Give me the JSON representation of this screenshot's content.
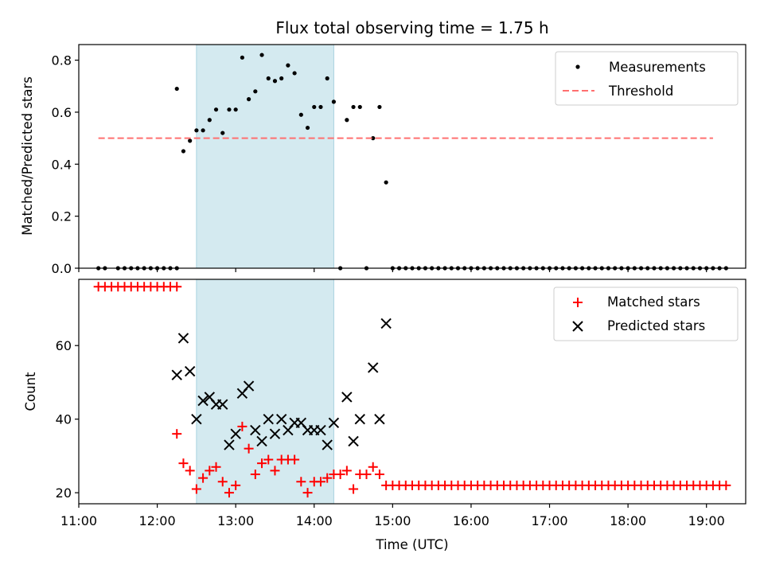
{
  "chart_data": [
    {
      "type": "scatter",
      "title": "Flux total observing time = 1.75 h",
      "xlabel": "",
      "ylabel": "Matched/Predicted stars",
      "xlim": [
        "11:00",
        "19:30"
      ],
      "ylim": [
        0,
        0.86
      ],
      "yticks": [
        0.0,
        0.2,
        0.4,
        0.6,
        0.8
      ],
      "ytick_labels": [
        "0.0",
        "0.2",
        "0.4",
        "0.6",
        "0.8"
      ],
      "highlight_span": {
        "from": "12:30",
        "to": "14:15",
        "color": "#d4eaf0"
      },
      "legend_position": "top-right",
      "series": [
        {
          "name": "Measurements",
          "marker": "dot",
          "color": "#000000",
          "points": [
            [
              "11:15",
              0
            ],
            [
              "11:20",
              0
            ],
            [
              "11:30",
              0
            ],
            [
              "11:35",
              0
            ],
            [
              "11:40",
              0
            ],
            [
              "11:45",
              0
            ],
            [
              "11:50",
              0
            ],
            [
              "11:55",
              0
            ],
            [
              "12:00",
              0
            ],
            [
              "12:05",
              0
            ],
            [
              "12:10",
              0
            ],
            [
              "12:15",
              0
            ],
            [
              "12:15",
              0.69
            ],
            [
              "12:20",
              0.45
            ],
            [
              "12:25",
              0.49
            ],
            [
              "12:30",
              0.53
            ],
            [
              "12:35",
              0.53
            ],
            [
              "12:40",
              0.57
            ],
            [
              "12:45",
              0.61
            ],
            [
              "12:50",
              0.52
            ],
            [
              "12:55",
              0.61
            ],
            [
              "13:00",
              0.61
            ],
            [
              "13:05",
              0.81
            ],
            [
              "13:10",
              0.65
            ],
            [
              "13:15",
              0.68
            ],
            [
              "13:20",
              0.82
            ],
            [
              "13:25",
              0.73
            ],
            [
              "13:30",
              0.72
            ],
            [
              "13:35",
              0.73
            ],
            [
              "13:40",
              0.78
            ],
            [
              "13:45",
              0.75
            ],
            [
              "13:50",
              0.59
            ],
            [
              "13:55",
              0.54
            ],
            [
              "14:00",
              0.62
            ],
            [
              "14:05",
              0.62
            ],
            [
              "14:10",
              0.73
            ],
            [
              "14:15",
              0.64
            ],
            [
              "14:20",
              0
            ],
            [
              "14:25",
              0.57
            ],
            [
              "14:30",
              0.62
            ],
            [
              "14:35",
              0.62
            ],
            [
              "14:40",
              0
            ],
            [
              "14:45",
              0.5
            ],
            [
              "14:50",
              0.62
            ],
            [
              "14:55",
              0.33
            ]
          ],
          "zero_run": {
            "from": "15:00",
            "to": "19:15",
            "step_minutes": 5,
            "value": 0
          }
        },
        {
          "name": "Threshold",
          "marker": "dashed-line",
          "color": "#ff7070",
          "points": [
            [
              "11:15",
              0.5
            ],
            [
              "19:05",
              0.5
            ]
          ]
        }
      ]
    },
    {
      "type": "scatter",
      "title": "",
      "xlabel": "Time (UTC)",
      "ylabel": "Count",
      "xlim": [
        "11:00",
        "19:30"
      ],
      "ylim": [
        17,
        78
      ],
      "xticks": [
        "11:00",
        "12:00",
        "13:00",
        "14:00",
        "15:00",
        "16:00",
        "17:00",
        "18:00",
        "19:00"
      ],
      "yticks": [
        20,
        40,
        60
      ],
      "ytick_labels": [
        "20",
        "40",
        "60"
      ],
      "highlight_span": {
        "from": "12:30",
        "to": "14:15",
        "color": "#d4eaf0"
      },
      "legend_position": "top-right",
      "series": [
        {
          "name": "Matched stars",
          "marker": "plus",
          "color": "#ff0000",
          "points": [
            [
              "11:15",
              76
            ],
            [
              "11:20",
              76
            ],
            [
              "11:25",
              76
            ],
            [
              "11:30",
              76
            ],
            [
              "11:35",
              76
            ],
            [
              "11:40",
              76
            ],
            [
              "11:45",
              76
            ],
            [
              "11:50",
              76
            ],
            [
              "11:55",
              76
            ],
            [
              "12:00",
              76
            ],
            [
              "12:05",
              76
            ],
            [
              "12:10",
              76
            ],
            [
              "12:15",
              76
            ],
            [
              "12:15",
              36
            ],
            [
              "12:20",
              28
            ],
            [
              "12:25",
              26
            ],
            [
              "12:30",
              21
            ],
            [
              "12:35",
              24
            ],
            [
              "12:40",
              26
            ],
            [
              "12:45",
              27
            ],
            [
              "12:50",
              23
            ],
            [
              "12:55",
              20
            ],
            [
              "13:00",
              22
            ],
            [
              "13:05",
              38
            ],
            [
              "13:10",
              32
            ],
            [
              "13:15",
              25
            ],
            [
              "13:20",
              28
            ],
            [
              "13:25",
              29
            ],
            [
              "13:30",
              26
            ],
            [
              "13:35",
              29
            ],
            [
              "13:40",
              29
            ],
            [
              "13:45",
              29
            ],
            [
              "13:50",
              23
            ],
            [
              "13:55",
              20
            ],
            [
              "14:00",
              23
            ],
            [
              "14:05",
              23
            ],
            [
              "14:10",
              24
            ],
            [
              "14:15",
              25
            ],
            [
              "14:20",
              25
            ],
            [
              "14:25",
              26
            ],
            [
              "14:30",
              21
            ],
            [
              "14:35",
              25
            ],
            [
              "14:40",
              25
            ],
            [
              "14:45",
              27
            ],
            [
              "14:50",
              25
            ],
            [
              "14:55",
              22
            ]
          ],
          "zero_run": {
            "from": "15:00",
            "to": "19:15",
            "step_minutes": 5,
            "value": 22
          }
        },
        {
          "name": "Predicted stars",
          "marker": "x",
          "color": "#000000",
          "points": [
            [
              "12:15",
              52
            ],
            [
              "12:20",
              62
            ],
            [
              "12:25",
              53
            ],
            [
              "12:30",
              40
            ],
            [
              "12:35",
              45
            ],
            [
              "12:40",
              46
            ],
            [
              "12:45",
              44
            ],
            [
              "12:50",
              44
            ],
            [
              "12:55",
              33
            ],
            [
              "13:00",
              36
            ],
            [
              "13:05",
              47
            ],
            [
              "13:10",
              49
            ],
            [
              "13:15",
              37
            ],
            [
              "13:20",
              34
            ],
            [
              "13:25",
              40
            ],
            [
              "13:30",
              36
            ],
            [
              "13:35",
              40
            ],
            [
              "13:40",
              37
            ],
            [
              "13:45",
              39
            ],
            [
              "13:50",
              39
            ],
            [
              "13:55",
              37
            ],
            [
              "14:00",
              37
            ],
            [
              "14:05",
              37
            ],
            [
              "14:10",
              33
            ],
            [
              "14:15",
              39
            ],
            [
              "14:25",
              46
            ],
            [
              "14:30",
              34
            ],
            [
              "14:35",
              40
            ],
            [
              "14:45",
              54
            ],
            [
              "14:50",
              40
            ],
            [
              "14:55",
              66
            ]
          ]
        }
      ]
    }
  ]
}
